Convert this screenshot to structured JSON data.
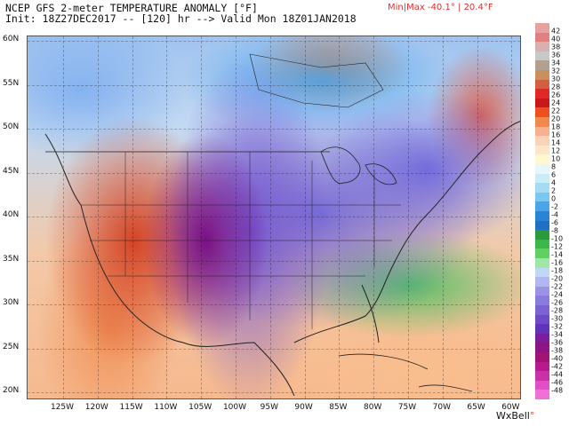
{
  "header": {
    "title": "NCEP GFS 2-meter TEMPERATURE ANOMALY [°F]",
    "subtitle": "Init: 18Z27DEC2017 -- [120] hr --> Valid Mon 18Z01JAN2018",
    "minmax": "Min|Max -40.1° | 20.4°F"
  },
  "map": {
    "lat_labels": [
      "60N",
      "55N",
      "50N",
      "45N",
      "40N",
      "35N",
      "30N",
      "25N",
      "20N"
    ],
    "lon_labels": [
      "125W",
      "120W",
      "115W",
      "110W",
      "105W",
      "100W",
      "95W",
      "90W",
      "85W",
      "80W",
      "75W",
      "70W",
      "65W",
      "60W"
    ]
  },
  "legend": {
    "labels": [
      "42",
      "38",
      "34",
      "30",
      "26",
      "22",
      "18",
      "14",
      "10",
      "6",
      "2",
      "-2",
      "-6",
      "-10",
      "-14",
      "-18",
      "-22",
      "-26",
      "-30",
      "-34",
      "-38",
      "-42",
      "-46"
    ],
    "extra_labels": [
      "40",
      "36",
      "32",
      "28",
      "24",
      "20",
      "16",
      "12",
      "8",
      "4",
      "0",
      "-4",
      "-8",
      "-12",
      "-16",
      "-20",
      "-24",
      "-28",
      "-32",
      "-36",
      "-40",
      "-44",
      "-48"
    ],
    "colors": [
      "#e8a0a0",
      "#e08080",
      "#d8b0b0",
      "#c8c8c8",
      "#b0a090",
      "#c89060",
      "#d06040",
      "#e02828",
      "#c81818",
      "#f05020",
      "#f08850",
      "#f8b090",
      "#fbd3b6",
      "#fde7c8",
      "#fef7cf",
      "#e6f7fa",
      "#c9ecf7",
      "#a3dcf4",
      "#7bc7ef",
      "#4aa6e6",
      "#2a84d6",
      "#1f6fc4",
      "#2a9a3a",
      "#3cb84a",
      "#60d060",
      "#a0e6a6",
      "#c0d8f5",
      "#b2b8ef",
      "#9b94e6",
      "#8a7cdc",
      "#7c63d3",
      "#6e4ac9",
      "#5f34b8",
      "#7a1e9a",
      "#8e1486",
      "#a01474",
      "#b81a8c",
      "#cc30a8",
      "#e050c4",
      "#ef70d6"
    ],
    "brand": "WxBell"
  }
}
